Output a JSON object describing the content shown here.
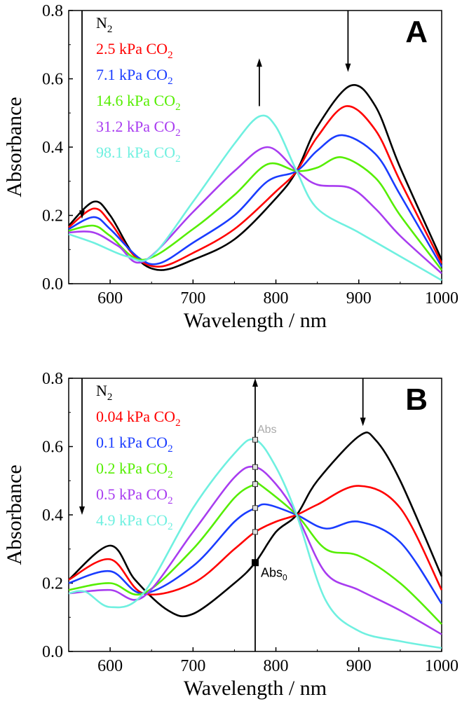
{
  "chart_data": [
    {
      "type": "line",
      "panel_label": "A",
      "xlabel": "Wavelength / nm",
      "ylabel": "Absorbance",
      "xlim": [
        550,
        1000
      ],
      "ylim": [
        0,
        0.8
      ],
      "xticks": [
        600,
        700,
        800,
        900,
        1000
      ],
      "yticks": [
        0.0,
        0.2,
        0.4,
        0.6,
        0.8
      ],
      "ytick_labels": [
        "0.0",
        "0.2",
        "0.4",
        "0.6",
        "0.8"
      ],
      "grid": false,
      "legend_placement": "top-left",
      "series": [
        {
          "name": "N2",
          "color": "#000000",
          "x": [
            550,
            580,
            600,
            630,
            660,
            700,
            750,
            800,
            825,
            850,
            890,
            920,
            950,
            1000
          ],
          "y": [
            0.17,
            0.24,
            0.2,
            0.08,
            0.04,
            0.07,
            0.13,
            0.25,
            0.33,
            0.46,
            0.58,
            0.52,
            0.34,
            0.07
          ]
        },
        {
          "name": "2.5 kPa CO2",
          "color": "#ff0000",
          "x": [
            550,
            580,
            600,
            630,
            660,
            700,
            750,
            800,
            825,
            850,
            885,
            920,
            950,
            1000
          ],
          "y": [
            0.165,
            0.22,
            0.18,
            0.08,
            0.05,
            0.09,
            0.16,
            0.27,
            0.33,
            0.43,
            0.52,
            0.45,
            0.3,
            0.06
          ]
        },
        {
          "name": "7.1 kPa CO2",
          "color": "#1a3cff",
          "x": [
            550,
            580,
            600,
            635,
            660,
            700,
            750,
            790,
            825,
            850,
            880,
            920,
            950,
            1000
          ],
          "y": [
            0.16,
            0.195,
            0.16,
            0.075,
            0.06,
            0.12,
            0.2,
            0.3,
            0.33,
            0.39,
            0.435,
            0.38,
            0.26,
            0.05
          ]
        },
        {
          "name": "14.6 kPa CO2",
          "color": "#55ee00",
          "x": [
            550,
            580,
            600,
            640,
            700,
            750,
            790,
            825,
            850,
            880,
            920,
            950,
            1000
          ],
          "y": [
            0.155,
            0.17,
            0.14,
            0.07,
            0.16,
            0.26,
            0.35,
            0.33,
            0.34,
            0.37,
            0.31,
            0.2,
            0.04
          ]
        },
        {
          "name": "31.2 kPa CO2",
          "color": "#a83cf0",
          "x": [
            550,
            580,
            610,
            640,
            700,
            750,
            790,
            825,
            850,
            890,
            920,
            950,
            1000
          ],
          "y": [
            0.15,
            0.15,
            0.11,
            0.065,
            0.21,
            0.33,
            0.4,
            0.33,
            0.29,
            0.28,
            0.22,
            0.14,
            0.03
          ]
        },
        {
          "name": "98.1 kPa CO2",
          "color": "#6ff0e0",
          "x": [
            550,
            580,
            620,
            650,
            700,
            750,
            780,
            800,
            825,
            850,
            900,
            950,
            1000
          ],
          "y": [
            0.145,
            0.12,
            0.08,
            0.08,
            0.24,
            0.41,
            0.49,
            0.46,
            0.33,
            0.22,
            0.15,
            0.08,
            0.01
          ]
        }
      ]
    },
    {
      "type": "line",
      "panel_label": "B",
      "xlabel": "Wavelength / nm",
      "ylabel": "Absorbance",
      "xlim": [
        550,
        1000
      ],
      "ylim": [
        0,
        0.8
      ],
      "xticks": [
        600,
        700,
        800,
        900,
        1000
      ],
      "yticks": [
        0.0,
        0.2,
        0.4,
        0.6,
        0.8
      ],
      "ytick_labels": [
        "0.0",
        "0.2",
        "0.4",
        "0.6",
        "0.8"
      ],
      "grid": false,
      "legend_placement": "top-left",
      "annotations": {
        "marker_wavelength": 775,
        "abs_label": "Abs",
        "abs0_label": "Abs",
        "abs0_subscript": "0",
        "abs_color": "#aaaaaa"
      },
      "series": [
        {
          "name": "N2",
          "color": "#000000",
          "x": [
            550,
            600,
            630,
            670,
            700,
            750,
            775,
            800,
            825,
            850,
            900,
            920,
            950,
            1000
          ],
          "y": [
            0.21,
            0.31,
            0.21,
            0.12,
            0.11,
            0.2,
            0.26,
            0.35,
            0.4,
            0.5,
            0.63,
            0.62,
            0.5,
            0.22
          ]
        },
        {
          "name": "0.04 kPa CO2",
          "color": "#ff0000",
          "x": [
            550,
            600,
            640,
            700,
            750,
            775,
            800,
            825,
            850,
            900,
            950,
            1000
          ],
          "y": [
            0.21,
            0.27,
            0.17,
            0.2,
            0.3,
            0.35,
            0.38,
            0.4,
            0.43,
            0.485,
            0.42,
            0.18
          ]
        },
        {
          "name": "0.1 kPa CO2",
          "color": "#1a3cff",
          "x": [
            550,
            600,
            640,
            700,
            750,
            775,
            790,
            825,
            860,
            900,
            950,
            1000
          ],
          "y": [
            0.2,
            0.235,
            0.17,
            0.25,
            0.38,
            0.42,
            0.43,
            0.4,
            0.36,
            0.38,
            0.32,
            0.14
          ]
        },
        {
          "name": "0.2 kPa CO2",
          "color": "#55ee00",
          "x": [
            550,
            600,
            640,
            700,
            750,
            775,
            780,
            825,
            860,
            900,
            950,
            1000
          ],
          "y": [
            0.18,
            0.2,
            0.17,
            0.3,
            0.45,
            0.49,
            0.49,
            0.4,
            0.3,
            0.28,
            0.2,
            0.08
          ]
        },
        {
          "name": "0.5 kPa CO2",
          "color": "#a83cf0",
          "x": [
            550,
            600,
            640,
            700,
            750,
            775,
            800,
            825,
            860,
            900,
            950,
            1000
          ],
          "y": [
            0.17,
            0.18,
            0.16,
            0.35,
            0.51,
            0.54,
            0.49,
            0.4,
            0.23,
            0.18,
            0.12,
            0.05
          ]
        },
        {
          "name": "4.9 kPa CO2",
          "color": "#6ff0e0",
          "x": [
            550,
            570,
            600,
            640,
            700,
            750,
            775,
            800,
            825,
            860,
            900,
            950,
            1000
          ],
          "y": [
            0.17,
            0.175,
            0.13,
            0.17,
            0.42,
            0.58,
            0.62,
            0.54,
            0.4,
            0.15,
            0.06,
            0.03,
            0.01
          ]
        }
      ]
    }
  ]
}
